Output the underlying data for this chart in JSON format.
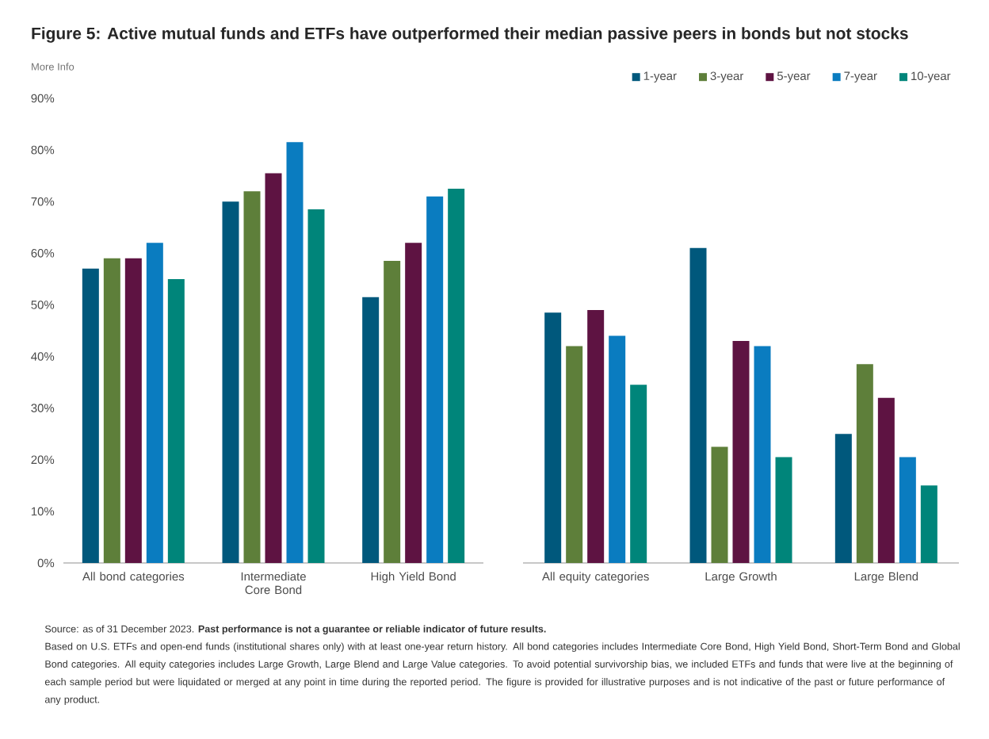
{
  "chart_data": [
    {
      "type": "bar",
      "title": "Figure 5: Active mutual funds and ETFs have outperformed their median passive peers in bonds but not stocks",
      "categories": [
        "All bond categories",
        "Intermediate Core Bond",
        "High Yield Bond"
      ],
      "series": [
        {
          "color": "#00587c",
          "values": [
            57,
            70,
            51.5
          ]
        },
        {
          "color": "#5e7f3a",
          "values": [
            59,
            72,
            58.5
          ]
        },
        {
          "color": "#5e1342",
          "values": [
            59,
            75.5,
            62
          ]
        },
        {
          "color": "#0a7cc0",
          "values": [
            62,
            81.5,
            71
          ]
        },
        {
          "color": "#00857a",
          "values": [
            55,
            68.5,
            72.5
          ]
        }
      ],
      "ylim": [
        0,
        90
      ],
      "yticks": [
        {
          "value": 0,
          "label": "0%"
        },
        {
          "value": 10,
          "label": "10%"
        },
        {
          "value": 20,
          "label": "20%"
        },
        {
          "value": 30,
          "label": "30%"
        },
        {
          "value": 40,
          "label": "40%"
        },
        {
          "value": 50,
          "label": "50%"
        },
        {
          "value": 60,
          "label": "60%"
        },
        {
          "value": 70,
          "label": "70%"
        },
        {
          "value": 80,
          "label": "80%"
        },
        {
          "value": 90,
          "label": "90%"
        }
      ],
      "annotations": [
        "More Info",
        "Source: as of 31 December 2023. **Past performance is not a guarantee or reliable indicator of future results.**",
        "Based on U.S. ETFs and open-end funds (institutional shares only) with at least one-year return history. All bond categories includes Intermediate Core Bond, High Yield Bond, Short-Term Bond and Global Bond categories. All equity categories includes Large Growth, Large Blend and Large Value categories. To avoid potential survivorship bias, we included ETFs and funds that were live at the beginning of each sample period but were liquidated or merged at any point in time during the reported period. The figure is provided for illustrative purposes and is not indicative of the past or future performance of any product."
      ]
    },
    {
      "type": "bar",
      "categories": [
        "All equity categories",
        "Large Growth",
        "Large Blend"
      ],
      "series": [
        {
          "name": "1-year",
          "color": "#00587c",
          "values": [
            48.5,
            61,
            25
          ]
        },
        {
          "name": "3-year",
          "color": "#5e7f3a",
          "values": [
            42,
            22.5,
            38.5
          ]
        },
        {
          "name": "5-year",
          "color": "#5e1342",
          "values": [
            49,
            43,
            32
          ]
        },
        {
          "name": "7-year",
          "color": "#0a7cc0",
          "values": [
            44,
            42,
            20.5
          ]
        },
        {
          "name": "10-year",
          "color": "#00857a",
          "values": [
            34.5,
            20.5,
            15
          ]
        }
      ],
      "ylim": [
        0,
        90
      ],
      "tick_labels": "x",
      "legend": "top right"
    }
  ]
}
